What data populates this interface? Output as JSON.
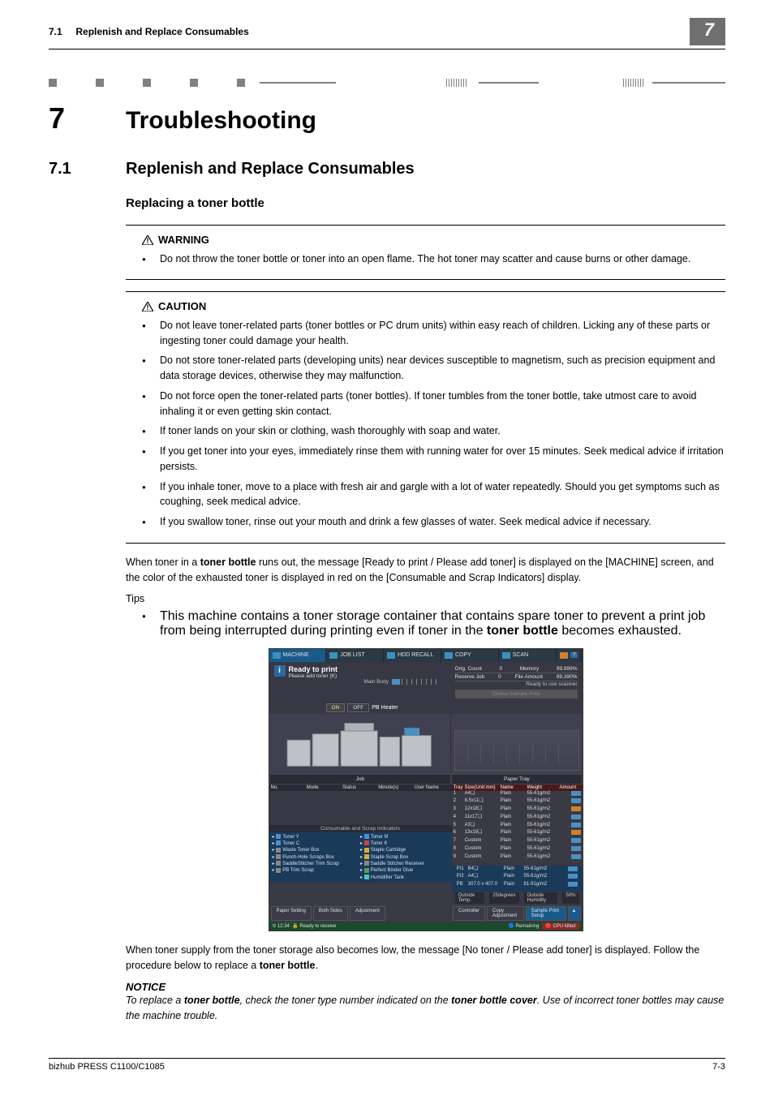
{
  "header": {
    "section_ref": "7.1",
    "section_text": "Replenish and Replace Consumables",
    "chapter_badge": "7"
  },
  "chapter": {
    "num": "7",
    "title": "Troubleshooting"
  },
  "section": {
    "num": "7.1",
    "title": "Replenish and Replace Consumables"
  },
  "subtitle": "Replacing a toner bottle",
  "warning": {
    "label": "WARNING",
    "items": [
      "Do not throw the toner bottle or toner into an open flame. The hot toner may scatter and cause burns or other damage."
    ]
  },
  "caution": {
    "label": "CAUTION",
    "items": [
      "Do not leave toner-related parts (toner bottles or PC drum units) within easy reach of children. Licking any of these parts or ingesting toner could damage your health.",
      "Do not store toner-related parts (developing units) near devices susceptible to magnetism, such as precision equipment and data storage devices, otherwise they may malfunction.",
      "Do not force open the toner-related parts (toner bottles). If toner tumbles from the toner bottle, take utmost care to avoid inhaling it or even getting skin contact.",
      "If toner lands on your skin or clothing, wash thoroughly with soap and water.",
      "If you get toner into your eyes, immediately rinse them with running water for over 15 minutes. Seek medical advice if irritation persists.",
      "If you inhale toner, move to a place with fresh air and gargle with a lot of water repeatedly. Should you get symptoms such as coughing, seek medical advice.",
      "If you swallow toner, rinse out your mouth and drink a few glasses of water. Seek medical advice if necessary."
    ]
  },
  "para1_a": "When toner in a ",
  "para1_b": "toner bottle",
  "para1_c": " runs out, the message [Ready to print / Please add toner] is displayed on the [MACHINE] screen, and the color of the exhausted toner is displayed in red on the [Consumable and Scrap Indicators] display.",
  "tips_label": "Tips",
  "tip_a": "This machine contains a toner storage container that contains spare toner to prevent a print job from being interrupted during printing even if toner in the ",
  "tip_b": "toner bottle",
  "tip_c": " becomes exhausted.",
  "para2_a": "When toner supply from the toner storage also becomes low, the message [No toner / Please add toner] is displayed. Follow the procedure below to replace a ",
  "para2_b": "toner bottle",
  "para2_c": ".",
  "notice_label": "NOTICE",
  "notice_a": "To replace a ",
  "notice_b": "toner bottle",
  "notice_c": ", check the toner type number indicated on the ",
  "notice_d": "toner bottle cover",
  "notice_e": ". Use of incorrect toner bottles may cause the machine trouble.",
  "screenshot": {
    "tabs": [
      "MACHINE",
      "JOB LIST",
      "HDD RECALL",
      "COPY",
      "SCAN"
    ],
    "status_title": "Ready to print",
    "status_sub": "Please add toner (K)",
    "main_body_label": "Main Body",
    "right_stats": [
      {
        "l": "Orig. Count",
        "v": "0",
        "l2": "Memory",
        "v2": "99.999%"
      },
      {
        "l": "Reserve Job",
        "v": "0",
        "l2": "File Amount",
        "v2": "99.390%"
      }
    ],
    "scanner_msg": "Ready to use scanner",
    "sample_btn": "Output Sample Print",
    "heater": {
      "on": "ON",
      "off": "OFF",
      "label": "PB Heater"
    },
    "job_hdr": "Job",
    "tray_hdr": "Paper Tray",
    "job_cols": [
      "No.",
      "Mode",
      "Status",
      "Minute(s)",
      "User Name"
    ],
    "tray_cols": [
      "Tray",
      "Size(Unit:mm)",
      "Name",
      "Weight",
      "Amount"
    ],
    "trays": [
      {
        "n": "1",
        "s": "A4❏",
        "nm": "Plain",
        "w": "55-61g/m2",
        "a": "blue"
      },
      {
        "n": "2",
        "s": "8.5x11❏",
        "nm": "Plain",
        "w": "55-61g/m2",
        "a": "blue"
      },
      {
        "n": "3",
        "s": "12x18❏",
        "nm": "Plain",
        "w": "55-61g/m2",
        "a": "warn"
      },
      {
        "n": "4",
        "s": "11x17❏",
        "nm": "Plain",
        "w": "55-61g/m2",
        "a": "blue"
      },
      {
        "n": "5",
        "s": "A3❏",
        "nm": "Plain",
        "w": "55-61g/m2",
        "a": "blue"
      },
      {
        "n": "6",
        "s": "13x19❏",
        "nm": "Plain",
        "w": "55-61g/m2",
        "a": "warn"
      },
      {
        "n": "7",
        "s": "Custom",
        "nm": "Plain",
        "w": "55-61g/m2",
        "a": "blue"
      },
      {
        "n": "8",
        "s": "Custom",
        "nm": "Plain",
        "w": "55-61g/m2",
        "a": "blue"
      },
      {
        "n": "9",
        "s": "Custom",
        "nm": "Plain",
        "w": "55-61g/m2",
        "a": "blue"
      }
    ],
    "consum_hdr": "Consumable and Scrap Indicators",
    "consum_left": [
      {
        "c": "blue",
        "t": "Toner Y"
      },
      {
        "c": "blue",
        "t": "Toner C"
      },
      {
        "c": "gray",
        "t": "Waste Toner Box"
      },
      {
        "c": "gray",
        "t": "Punch-Hole Scraps Box"
      },
      {
        "c": "gray",
        "t": "SaddleStitcher Trim Scrap"
      },
      {
        "c": "gray",
        "t": "PB Trim Scrap"
      }
    ],
    "consum_right": [
      {
        "c": "blue",
        "t": "Toner M"
      },
      {
        "c": "red",
        "t": "Toner K"
      },
      {
        "c": "yel",
        "t": "Staple Cartridge"
      },
      {
        "c": "yel",
        "t": "Staple Scrap Box"
      },
      {
        "c": "gray",
        "t": "Saddle Stitcher Receiver"
      },
      {
        "c": "grn",
        "t": "Perfect Binder Glue"
      },
      {
        "c": "cyan",
        "t": "Humidifier Tank"
      }
    ],
    "lower_trays": [
      {
        "n": "PI1",
        "s": "B4❏",
        "nm": "Plain",
        "w": "55-61g/m2",
        "a": "blue"
      },
      {
        "n": "PI2",
        "s": "A4❏",
        "nm": "Plain",
        "w": "55-61g/m2",
        "a": "blue"
      },
      {
        "n": "PB",
        "s": "307.0 x 407.0",
        "nm": "Plain",
        "w": "81-91g/m2",
        "a": "blue"
      }
    ],
    "env": {
      "t_lbl": "Outside Temp.",
      "t_val": "25degrees",
      "h_lbl": "Outside Humidity",
      "h_val": "50%"
    },
    "btns_left": [
      "Paper Setting",
      "Both Sides",
      "Adjustment"
    ],
    "btns_right": [
      "Controller",
      "Copy Adjustment",
      "Sample Print Setup"
    ],
    "footer_time": "⏲ 12:34",
    "footer_status": "🔒 Ready to receive",
    "footer_r1": "🔵 Remaining",
    "footer_r2": "🔴 CPU killed"
  },
  "footer": {
    "left": "bizhub PRESS C1100/C1085",
    "right": "7-3"
  }
}
